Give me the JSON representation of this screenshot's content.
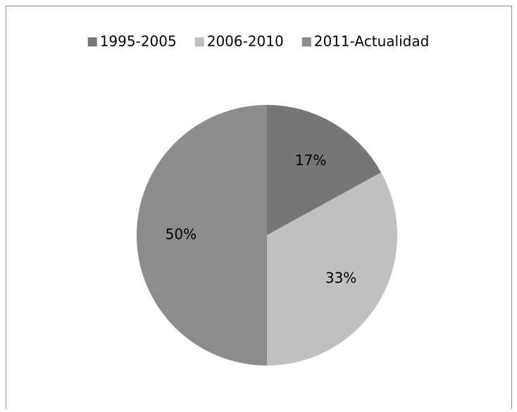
{
  "chart_data": {
    "type": "pie",
    "categories": [
      "1995-2005",
      "2006-2010",
      "2011-Actualidad"
    ],
    "values": [
      17,
      33,
      50
    ],
    "value_labels": [
      "17%",
      "33%",
      "50%"
    ],
    "colors": [
      "#767676",
      "#c0c0c0",
      "#8c8c8c"
    ],
    "legend": "top"
  }
}
